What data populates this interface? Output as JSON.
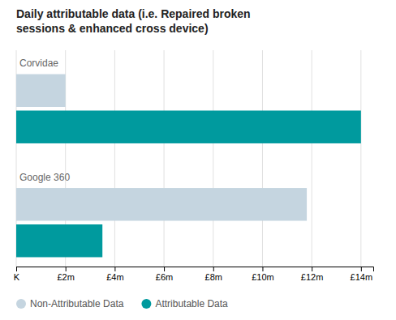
{
  "chart_data": {
    "type": "bar",
    "orientation": "horizontal",
    "title": "Daily attributable data (i.e. Repaired broken\nsessions & enhanced cross device)",
    "categories": [
      "Corvidae",
      "Google 360"
    ],
    "series": [
      {
        "name": "Non-Attributable Data",
        "color": "#c5d5e0",
        "values": [
          2000000,
          11800000
        ]
      },
      {
        "name": "Attributable Data",
        "color": "#009a9e",
        "values": [
          14000000,
          3500000
        ]
      }
    ],
    "xlim": [
      0,
      14500000
    ],
    "xticks": [
      {
        "value": 0,
        "label": "K"
      },
      {
        "value": 2000000,
        "label": "£2m"
      },
      {
        "value": 4000000,
        "label": "£4m"
      },
      {
        "value": 6000000,
        "label": "£6m"
      },
      {
        "value": 8000000,
        "label": "£8m"
      },
      {
        "value": 10000000,
        "label": "£10m"
      },
      {
        "value": 12000000,
        "label": "£12m"
      },
      {
        "value": 14000000,
        "label": "£14m"
      }
    ],
    "grid": true,
    "legend": "lower left",
    "tick_labels": "x"
  }
}
